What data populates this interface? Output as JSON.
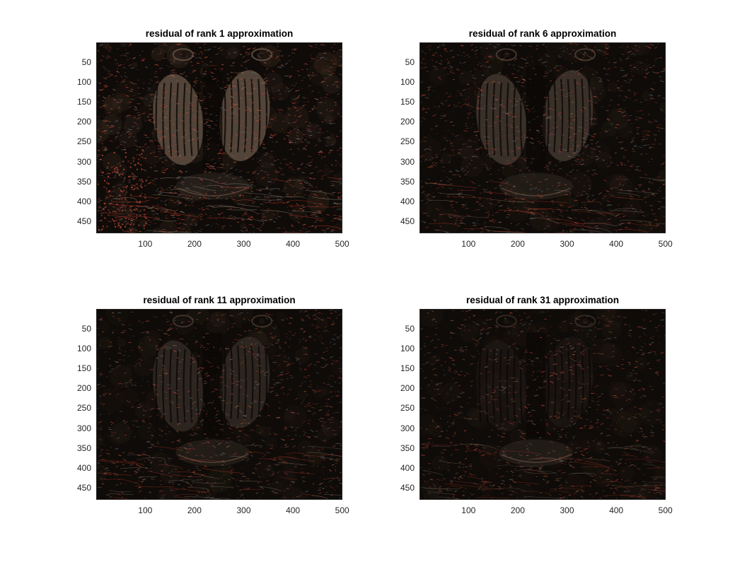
{
  "figure": {
    "panels": [
      {
        "title": "residual of rank 1 approximation",
        "rank": 1,
        "yticks": [
          "50",
          "100",
          "150",
          "200",
          "250",
          "300",
          "350",
          "400",
          "450"
        ],
        "xticks": [
          "100",
          "200",
          "300",
          "400",
          "500"
        ]
      },
      {
        "title": "residual of rank 6 approximation",
        "rank": 6,
        "yticks": [
          "50",
          "100",
          "150",
          "200",
          "250",
          "300",
          "350",
          "400",
          "450"
        ],
        "xticks": [
          "100",
          "200",
          "300",
          "400",
          "500"
        ]
      },
      {
        "title": "residual of rank 11 approximation",
        "rank": 11,
        "yticks": [
          "50",
          "100",
          "150",
          "200",
          "250",
          "300",
          "350",
          "400",
          "450"
        ],
        "xticks": [
          "100",
          "200",
          "300",
          "400",
          "500"
        ]
      },
      {
        "title": "residual of rank 31 approximation",
        "rank": 31,
        "yticks": [
          "50",
          "100",
          "150",
          "200",
          "250",
          "300",
          "350",
          "400",
          "450"
        ],
        "xticks": [
          "100",
          "200",
          "300",
          "400",
          "500"
        ]
      }
    ],
    "image_extent": {
      "x": [
        1,
        500
      ],
      "y": [
        1,
        480
      ]
    },
    "colors": {
      "background": "#ffffff",
      "axis": "#262626",
      "image_dark": "#0b0806",
      "residual_red": "#c0392b",
      "residual_brown": "#4a3a2c"
    }
  }
}
